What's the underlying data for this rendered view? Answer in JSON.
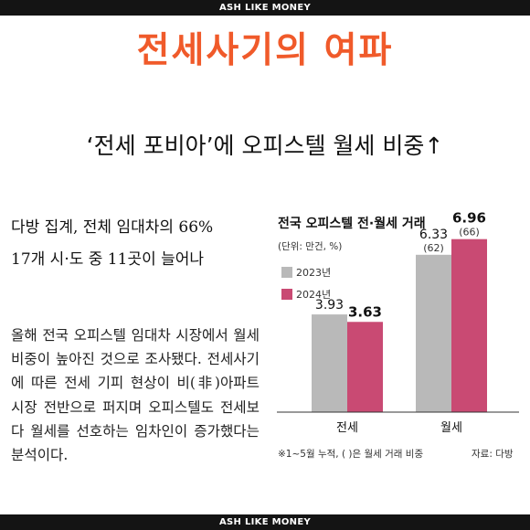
{
  "brand": {
    "top": "ASH LIKE MONEY",
    "bottom": "ASH LIKE MONEY"
  },
  "title": "전세사기의 여파",
  "headline": "‘전세 포비아’에 오피스텔 월세 비중↑",
  "subheads": [
    "다방 집계, 전체 임대차의 66%",
    "17개 시·도 중 11곳이 늘어나"
  ],
  "body": "올해 전국 오피스텔 임대차 시장에서 월세 비중이 높아진 것으로 조사됐다. 전세사기에 따른 전세 기피 현상이 비(非)아파트 시장 전반으로 퍼지며 오피스텔도 전세보다 월세를 선호하는 임차인이 증가했다는 분석이다.",
  "colors": {
    "title": "#f05a2a",
    "series_2023": "#b9b9b9",
    "series_2024": "#c94a73"
  },
  "chart_data": {
    "type": "bar",
    "title": "전국 오피스텔 전·월세 거래",
    "unit": "(단위: 만건, %)",
    "categories": [
      "전세",
      "월세"
    ],
    "series": [
      {
        "name": "2023년",
        "values": [
          3.93,
          6.33
        ],
        "share_labels": [
          "",
          "(62)"
        ]
      },
      {
        "name": "2024년",
        "values": [
          3.63,
          6.96
        ],
        "share_labels": [
          "",
          "(66)"
        ]
      }
    ],
    "ylim": [
      0,
      8
    ],
    "grid": false,
    "legend": "top-left",
    "footnote": "※1~5월 누적, ( )은 월세 거래 비중",
    "source": "자료: 다방"
  }
}
